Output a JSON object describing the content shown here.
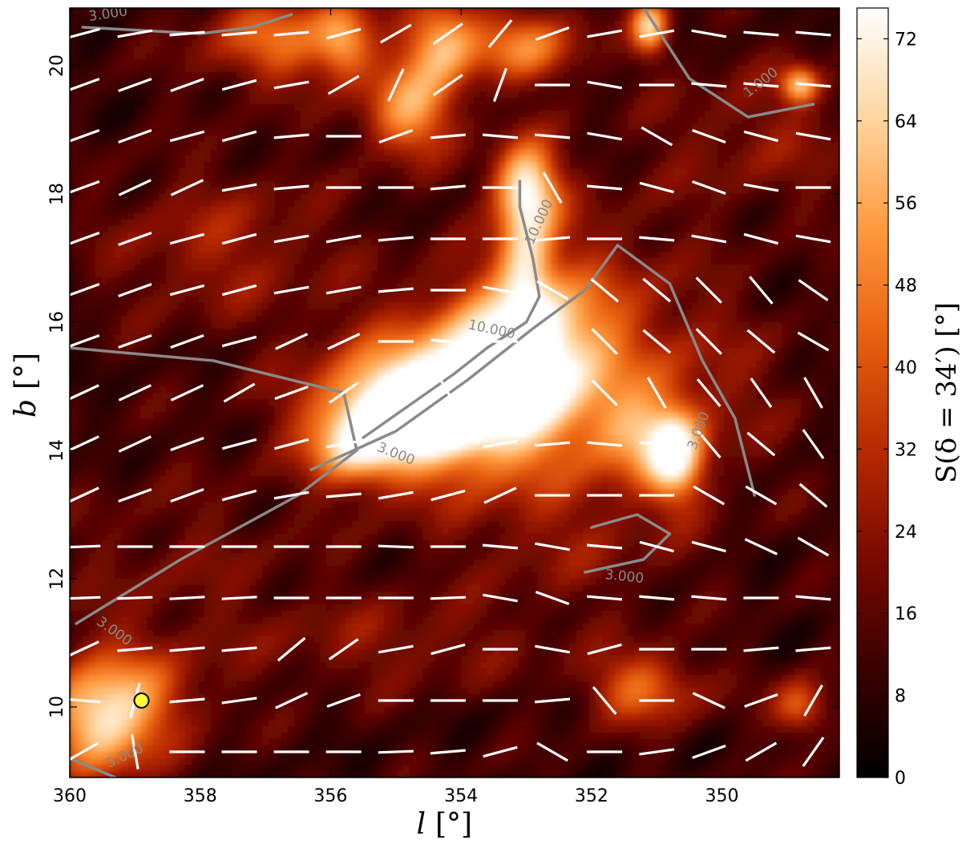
{
  "chart_data": {
    "type": "heatmap",
    "xlabel": "l",
    "xunit": "[°]",
    "ylabel": "b",
    "yunit": "[°]",
    "xlim": [
      360,
      348.2
    ],
    "ylim": [
      8.9,
      20.9
    ],
    "x_ticks": [
      360,
      358,
      356,
      354,
      352,
      350
    ],
    "y_ticks": [
      10,
      12,
      14,
      16,
      18,
      20
    ],
    "colorbar": {
      "label": "S(δ = 34′) [°]",
      "range": [
        0,
        75
      ],
      "ticks": [
        0,
        8,
        16,
        24,
        32,
        40,
        48,
        56,
        64,
        72
      ],
      "colormap": [
        "#000000",
        "#3a0000",
        "#7a0a00",
        "#b82a00",
        "#e86010",
        "#ff9a40",
        "#ffd5a0",
        "#ffffff"
      ]
    },
    "hotspots": [
      {
        "l": 354.0,
        "b": 14.8,
        "S": 68,
        "sl": 1.3,
        "sb": 0.9
      },
      {
        "l": 354.8,
        "b": 14.6,
        "S": 60,
        "sl": 0.9,
        "sb": 0.5
      },
      {
        "l": 353.0,
        "b": 15.5,
        "S": 62,
        "sl": 0.8,
        "sb": 0.8
      },
      {
        "l": 355.6,
        "b": 14.0,
        "S": 45,
        "sl": 0.5,
        "sb": 0.4
      },
      {
        "l": 353.0,
        "b": 18.1,
        "S": 70,
        "sl": 0.35,
        "sb": 0.5
      },
      {
        "l": 353.0,
        "b": 16.9,
        "S": 48,
        "sl": 0.3,
        "sb": 0.6
      },
      {
        "l": 354.8,
        "b": 19.3,
        "S": 52,
        "sl": 0.5,
        "sb": 0.5
      },
      {
        "l": 354.3,
        "b": 20.4,
        "S": 55,
        "sl": 0.4,
        "sb": 0.5
      },
      {
        "l": 353.0,
        "b": 20.3,
        "S": 45,
        "sl": 0.6,
        "sb": 0.4
      },
      {
        "l": 356.8,
        "b": 20.4,
        "S": 42,
        "sl": 0.8,
        "sb": 0.5
      },
      {
        "l": 355.8,
        "b": 20.4,
        "S": 45,
        "sl": 0.3,
        "sb": 0.4
      },
      {
        "l": 351.1,
        "b": 20.6,
        "S": 60,
        "sl": 0.2,
        "sb": 0.3
      },
      {
        "l": 348.8,
        "b": 19.7,
        "S": 55,
        "sl": 0.2,
        "sb": 0.2
      },
      {
        "l": 350.7,
        "b": 13.9,
        "S": 60,
        "sl": 0.3,
        "sb": 0.5
      },
      {
        "l": 351.3,
        "b": 14.2,
        "S": 40,
        "sl": 0.5,
        "sb": 0.5
      },
      {
        "l": 359.3,
        "b": 10.1,
        "S": 52,
        "sl": 0.8,
        "sb": 0.6
      },
      {
        "l": 359.6,
        "b": 9.5,
        "S": 40,
        "sl": 0.5,
        "sb": 0.5
      },
      {
        "l": 351.2,
        "b": 10.3,
        "S": 42,
        "sl": 0.6,
        "sb": 0.4
      },
      {
        "l": 348.8,
        "b": 10.0,
        "S": 42,
        "sl": 0.3,
        "sb": 0.3
      },
      {
        "l": 357.7,
        "b": 17.2,
        "S": 26,
        "sl": 1.2,
        "sb": 0.8
      },
      {
        "l": 355.0,
        "b": 11.0,
        "S": 22,
        "sl": 1.5,
        "sb": 0.5
      },
      {
        "l": 352.0,
        "b": 16.5,
        "S": 24,
        "sl": 1.0,
        "sb": 1.0
      },
      {
        "l": 350.5,
        "b": 15.0,
        "S": 24,
        "sl": 1.0,
        "sb": 1.0
      },
      {
        "l": 352.3,
        "b": 12.7,
        "S": 22,
        "sl": 1.2,
        "sb": 0.8
      },
      {
        "l": 349.4,
        "b": 18.9,
        "S": 22,
        "sl": 1.2,
        "sb": 0.8
      },
      {
        "l": 358.3,
        "b": 12.2,
        "S": 18,
        "sl": 1.4,
        "sb": 1.0
      }
    ],
    "contours": [
      {
        "level": "1.000",
        "points": [
          [
            351.2,
            20.9
          ],
          [
            350.5,
            19.8
          ],
          [
            349.6,
            19.2
          ],
          [
            348.6,
            19.4
          ]
        ]
      },
      {
        "level": "3.000",
        "points": [
          [
            359.8,
            20.6
          ],
          [
            358.0,
            20.5
          ],
          [
            357.2,
            20.6
          ],
          [
            356.6,
            20.8
          ]
        ]
      },
      {
        "level": "3.000",
        "points": [
          [
            359.9,
            11.3
          ],
          [
            358.3,
            12.3
          ],
          [
            356.5,
            13.3
          ],
          [
            355.6,
            14.0
          ],
          [
            355.8,
            14.9
          ],
          [
            357.8,
            15.4
          ],
          [
            360.0,
            15.6
          ]
        ]
      },
      {
        "level": "3.000",
        "points": [
          [
            356.3,
            13.7
          ],
          [
            355.0,
            14.3
          ],
          [
            353.9,
            15.1
          ],
          [
            352.9,
            15.9
          ],
          [
            352.1,
            16.5
          ],
          [
            351.6,
            17.2
          ],
          [
            350.8,
            16.6
          ],
          [
            350.3,
            15.4
          ],
          [
            349.8,
            14.5
          ],
          [
            349.5,
            13.3
          ]
        ]
      },
      {
        "level": "3.000",
        "points": [
          [
            352.1,
            12.1
          ],
          [
            351.2,
            12.3
          ],
          [
            350.8,
            12.7
          ],
          [
            351.3,
            13.0
          ],
          [
            352.0,
            12.8
          ]
        ]
      },
      {
        "level": "3.000",
        "points": [
          [
            360.0,
            9.2
          ],
          [
            359.3,
            8.9
          ]
        ]
      },
      {
        "level": "10.000",
        "points": [
          [
            355.5,
            14.2
          ],
          [
            354.8,
            14.7
          ],
          [
            354.1,
            15.2
          ],
          [
            353.6,
            15.6
          ],
          [
            353.0,
            16.0
          ],
          [
            352.8,
            16.4
          ],
          [
            352.9,
            17.0
          ],
          [
            353.1,
            17.8
          ],
          [
            353.1,
            18.2
          ]
        ]
      }
    ],
    "contour_labels": [
      {
        "text": "3.000",
        "l": 359.7,
        "b": 20.7,
        "angle": 8
      },
      {
        "text": "1.000",
        "l": 349.6,
        "b": 19.5,
        "angle": 38
      },
      {
        "text": "10.000",
        "l": 353.9,
        "b": 15.9,
        "angle": -12
      },
      {
        "text": "10.000",
        "l": 352.9,
        "b": 17.2,
        "angle": 65
      },
      {
        "text": "3.000",
        "l": 355.3,
        "b": 14.0,
        "angle": -22
      },
      {
        "text": "3.000",
        "l": 350.4,
        "b": 14.0,
        "angle": 70
      },
      {
        "text": "3.000",
        "l": 351.8,
        "b": 12.0,
        "angle": -6
      },
      {
        "text": "3.000",
        "l": 359.6,
        "b": 11.3,
        "angle": -35
      },
      {
        "text": "3.000",
        "l": 359.4,
        "b": 9.05,
        "angle": 25
      }
    ],
    "vectors": {
      "l_values": [
        359.8,
        359.0,
        358.2,
        357.4,
        356.6,
        355.8,
        355.0,
        354.2,
        353.4,
        352.6,
        351.8,
        351.0,
        350.2,
        349.4,
        348.6
      ],
      "b_values": [
        9.3,
        10.1,
        10.9,
        11.7,
        12.5,
        13.3,
        14.1,
        14.9,
        15.7,
        16.5,
        17.3,
        18.1,
        18.9,
        19.7,
        20.5
      ],
      "angles_deg": [
        [
          30,
          100,
          0,
          0,
          0,
          0,
          2,
          5,
          15,
          -30,
          0,
          8,
          20,
          30,
          55
        ],
        [
          -5,
          75,
          5,
          8,
          25,
          20,
          0,
          0,
          0,
          5,
          -50,
          0,
          -25,
          20,
          60
        ],
        [
          25,
          5,
          5,
          5,
          40,
          35,
          10,
          15,
          0,
          -10,
          15,
          0,
          0,
          5,
          5
        ],
        [
          2,
          2,
          3,
          3,
          0,
          0,
          0,
          2,
          -10,
          -20,
          -5,
          -5,
          -5,
          0,
          -5
        ],
        [
          2,
          0,
          0,
          0,
          0,
          0,
          -2,
          0,
          -5,
          -10,
          -5,
          -15,
          -15,
          -25,
          -30
        ],
        [
          25,
          20,
          20,
          15,
          10,
          5,
          10,
          15,
          25,
          0,
          0,
          0,
          -30,
          -30,
          -40
        ],
        [
          25,
          25,
          20,
          15,
          15,
          10,
          5,
          0,
          10,
          5,
          -5,
          -5,
          -50,
          -40,
          -55
        ],
        [
          25,
          25,
          25,
          30,
          20,
          35,
          30,
          -60,
          -55,
          -10,
          -45,
          -60,
          -50,
          -55,
          -60
        ],
        [
          20,
          20,
          20,
          15,
          25,
          25,
          0,
          -5,
          0,
          -70,
          -45,
          -40,
          -45,
          -40,
          -30
        ],
        [
          20,
          20,
          15,
          15,
          10,
          10,
          5,
          0,
          -10,
          -30,
          -40,
          -40,
          -45,
          -50,
          -35
        ],
        [
          20,
          20,
          15,
          15,
          10,
          10,
          5,
          0,
          0,
          5,
          0,
          -5,
          -10,
          -15,
          -10
        ],
        [
          20,
          25,
          25,
          10,
          5,
          0,
          0,
          5,
          0,
          -60,
          -5,
          -15,
          -20,
          -10,
          0
        ],
        [
          20,
          20,
          15,
          15,
          5,
          0,
          20,
          5,
          -5,
          -5,
          -10,
          -30,
          -20,
          -15,
          -10
        ],
        [
          20,
          20,
          20,
          15,
          10,
          30,
          65,
          35,
          70,
          0,
          -10,
          0,
          -5,
          -5,
          -5
        ],
        [
          15,
          10,
          5,
          5,
          5,
          15,
          30,
          35,
          50,
          20,
          10,
          10,
          -10,
          -5,
          -5
        ]
      ]
    },
    "marker": {
      "l": 358.9,
      "b": 10.1,
      "color": "#ffff33"
    }
  },
  "colors": {
    "contour": "#8a8a8a",
    "vector": "#ffffff",
    "frame": "#000000"
  },
  "legend": {
    "title": "S(δ = 34′)"
  }
}
